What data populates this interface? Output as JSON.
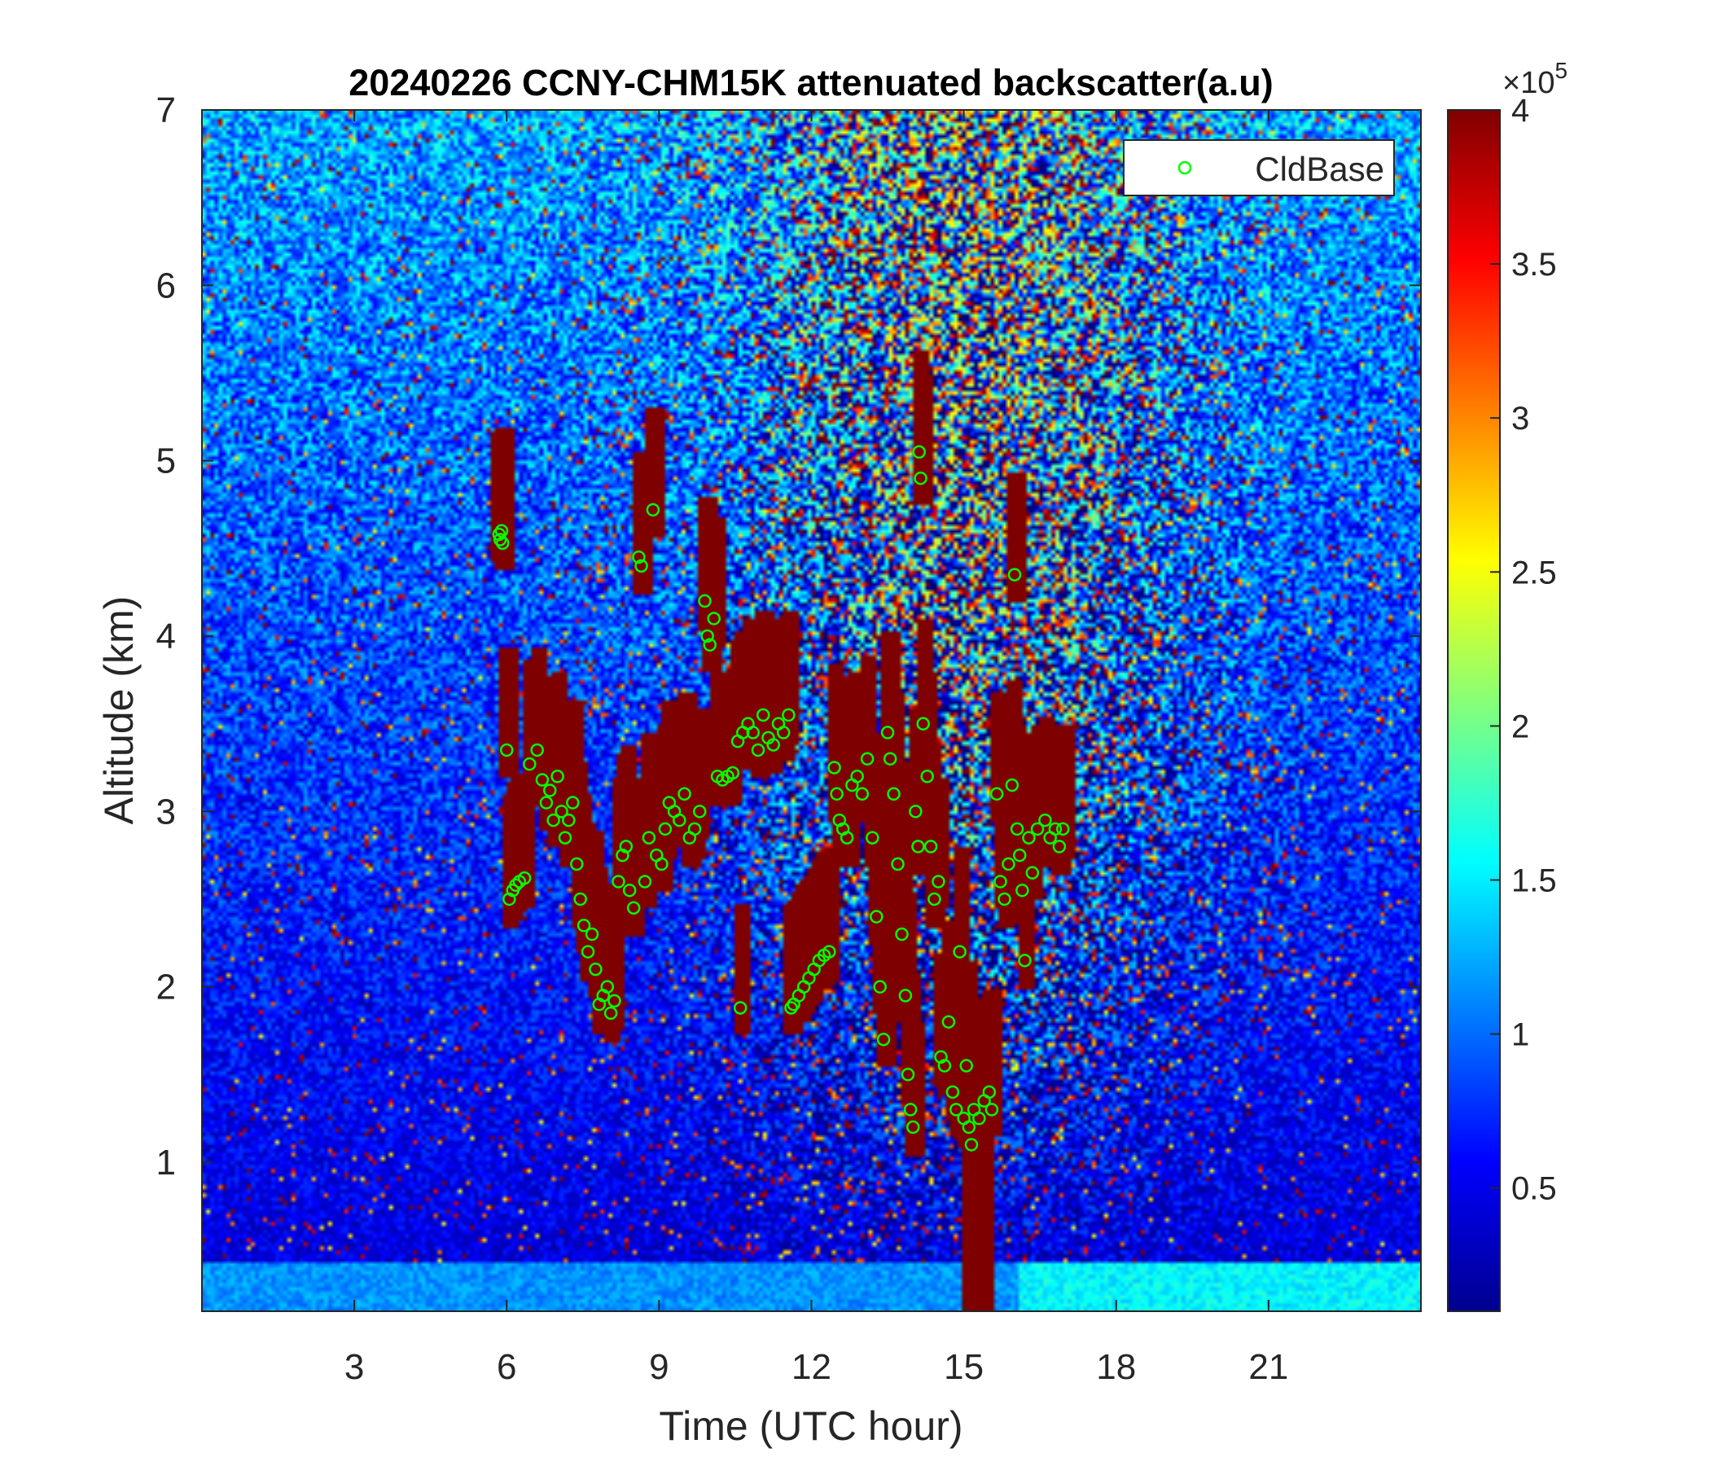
{
  "chart_data": {
    "type": "heatmap",
    "title": "20240226 CCNY-CHM15K attenuated backscatter(a.u)",
    "xlabel": "Time (UTC hour)",
    "ylabel": "Altitude (km)",
    "xlim": [
      0,
      24
    ],
    "ylim": [
      0.15,
      7
    ],
    "xticks": [
      3,
      6,
      9,
      12,
      15,
      18,
      21
    ],
    "yticks": [
      1,
      2,
      3,
      4,
      5,
      6,
      7
    ],
    "colorbar": {
      "colormap": "jet",
      "clim": [
        10000,
        400000
      ],
      "ticks": [
        50000,
        100000,
        150000,
        200000,
        250000,
        300000,
        350000,
        400000
      ],
      "tick_labels": [
        "0.5",
        "1",
        "1.5",
        "2",
        "2.5",
        "3",
        "3.5",
        "4"
      ],
      "exponent_label": "×10",
      "exponent_power": "5"
    },
    "legend": {
      "placement": "top-right",
      "entries": [
        {
          "name": "CldBase",
          "marker": "circle",
          "color": "#00ff00"
        }
      ]
    },
    "series": [
      {
        "name": "CldBase",
        "marker_color": "#00ff00",
        "points": [
          [
            5.85,
            4.58
          ],
          [
            5.87,
            4.55
          ],
          [
            5.9,
            4.6
          ],
          [
            5.92,
            4.53
          ],
          [
            6.0,
            3.35
          ],
          [
            6.05,
            2.5
          ],
          [
            6.12,
            2.55
          ],
          [
            6.18,
            2.58
          ],
          [
            6.25,
            2.6
          ],
          [
            6.35,
            2.62
          ],
          [
            6.45,
            3.27
          ],
          [
            6.6,
            3.35
          ],
          [
            6.7,
            3.18
          ],
          [
            6.78,
            3.05
          ],
          [
            6.85,
            3.12
          ],
          [
            6.92,
            2.95
          ],
          [
            7.0,
            3.2
          ],
          [
            7.08,
            3.0
          ],
          [
            7.15,
            2.85
          ],
          [
            7.22,
            2.95
          ],
          [
            7.3,
            3.05
          ],
          [
            7.38,
            2.7
          ],
          [
            7.45,
            2.5
          ],
          [
            7.52,
            2.35
          ],
          [
            7.6,
            2.2
          ],
          [
            7.68,
            2.3
          ],
          [
            7.75,
            2.1
          ],
          [
            7.82,
            1.9
          ],
          [
            7.9,
            1.95
          ],
          [
            7.98,
            2.0
          ],
          [
            8.05,
            1.85
          ],
          [
            8.12,
            1.92
          ],
          [
            8.2,
            2.6
          ],
          [
            8.28,
            2.75
          ],
          [
            8.35,
            2.8
          ],
          [
            8.42,
            2.55
          ],
          [
            8.5,
            2.45
          ],
          [
            8.6,
            4.45
          ],
          [
            8.65,
            4.4
          ],
          [
            8.72,
            2.6
          ],
          [
            8.8,
            2.85
          ],
          [
            8.88,
            4.72
          ],
          [
            8.95,
            2.75
          ],
          [
            9.05,
            2.7
          ],
          [
            9.12,
            2.9
          ],
          [
            9.2,
            3.05
          ],
          [
            9.3,
            3.0
          ],
          [
            9.4,
            2.95
          ],
          [
            9.5,
            3.1
          ],
          [
            9.6,
            2.85
          ],
          [
            9.7,
            2.9
          ],
          [
            9.8,
            3.0
          ],
          [
            9.9,
            4.2
          ],
          [
            9.95,
            4.0
          ],
          [
            10.0,
            3.95
          ],
          [
            10.08,
            4.1
          ],
          [
            10.15,
            3.2
          ],
          [
            10.25,
            3.18
          ],
          [
            10.35,
            3.2
          ],
          [
            10.45,
            3.22
          ],
          [
            10.55,
            3.4
          ],
          [
            10.6,
            1.88
          ],
          [
            10.65,
            3.45
          ],
          [
            10.75,
            3.5
          ],
          [
            10.85,
            3.45
          ],
          [
            10.95,
            3.35
          ],
          [
            11.05,
            3.55
          ],
          [
            11.15,
            3.42
          ],
          [
            11.25,
            3.38
          ],
          [
            11.35,
            3.5
          ],
          [
            11.45,
            3.45
          ],
          [
            11.55,
            3.55
          ],
          [
            11.6,
            1.88
          ],
          [
            11.65,
            1.9
          ],
          [
            11.75,
            1.95
          ],
          [
            11.85,
            2.0
          ],
          [
            11.95,
            2.05
          ],
          [
            12.05,
            2.1
          ],
          [
            12.15,
            2.15
          ],
          [
            12.25,
            2.18
          ],
          [
            12.35,
            2.2
          ],
          [
            12.45,
            3.25
          ],
          [
            12.5,
            3.1
          ],
          [
            12.55,
            2.95
          ],
          [
            12.62,
            2.9
          ],
          [
            12.7,
            2.85
          ],
          [
            12.8,
            3.15
          ],
          [
            12.9,
            3.2
          ],
          [
            13.0,
            3.1
          ],
          [
            13.1,
            3.3
          ],
          [
            13.2,
            2.85
          ],
          [
            13.28,
            2.4
          ],
          [
            13.35,
            2.0
          ],
          [
            13.42,
            1.7
          ],
          [
            13.5,
            3.45
          ],
          [
            13.55,
            3.3
          ],
          [
            13.62,
            3.1
          ],
          [
            13.7,
            2.7
          ],
          [
            13.78,
            2.3
          ],
          [
            13.85,
            1.95
          ],
          [
            13.9,
            1.5
          ],
          [
            13.95,
            1.3
          ],
          [
            14.0,
            1.2
          ],
          [
            14.05,
            3.0
          ],
          [
            14.1,
            2.8
          ],
          [
            14.12,
            5.05
          ],
          [
            14.15,
            4.9
          ],
          [
            14.2,
            3.5
          ],
          [
            14.28,
            3.2
          ],
          [
            14.35,
            2.8
          ],
          [
            14.42,
            2.5
          ],
          [
            14.5,
            2.6
          ],
          [
            14.55,
            1.6
          ],
          [
            14.62,
            1.55
          ],
          [
            14.7,
            1.8
          ],
          [
            14.78,
            1.4
          ],
          [
            14.85,
            1.3
          ],
          [
            14.92,
            2.2
          ],
          [
            15.0,
            1.25
          ],
          [
            15.05,
            1.55
          ],
          [
            15.1,
            1.2
          ],
          [
            15.15,
            1.1
          ],
          [
            15.2,
            1.3
          ],
          [
            15.3,
            1.25
          ],
          [
            15.4,
            1.35
          ],
          [
            15.5,
            1.4
          ],
          [
            15.55,
            1.3
          ],
          [
            15.65,
            3.1
          ],
          [
            15.72,
            2.6
          ],
          [
            15.8,
            2.5
          ],
          [
            15.88,
            2.7
          ],
          [
            15.95,
            3.15
          ],
          [
            16.0,
            4.35
          ],
          [
            16.05,
            2.9
          ],
          [
            16.1,
            2.75
          ],
          [
            16.15,
            2.55
          ],
          [
            16.2,
            2.15
          ],
          [
            16.28,
            2.85
          ],
          [
            16.35,
            2.65
          ],
          [
            16.45,
            2.9
          ],
          [
            16.6,
            2.95
          ],
          [
            16.7,
            2.85
          ],
          [
            16.8,
            2.9
          ],
          [
            16.88,
            2.8
          ],
          [
            16.95,
            2.9
          ]
        ]
      }
    ]
  }
}
